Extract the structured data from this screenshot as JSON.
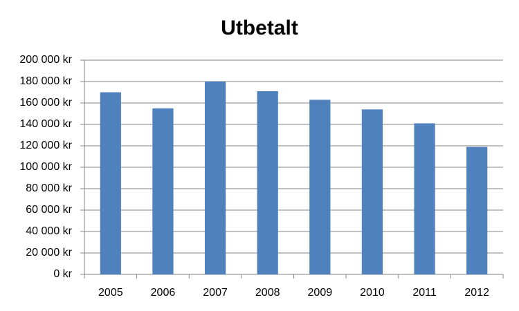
{
  "chart_data": {
    "type": "bar",
    "title": "Utbetalt",
    "categories": [
      "2005",
      "2006",
      "2007",
      "2008",
      "2009",
      "2010",
      "2011",
      "2012"
    ],
    "values": [
      170000,
      155000,
      180000,
      171000,
      163000,
      154000,
      141000,
      119000
    ],
    "color": "#4f81bd",
    "ylim": [
      0,
      200000
    ],
    "yticks": [
      {
        "value": 0,
        "label": "0 kr"
      },
      {
        "value": 20000,
        "label": "20 000 kr"
      },
      {
        "value": 40000,
        "label": "40 000 kr"
      },
      {
        "value": 60000,
        "label": "60 000 kr"
      },
      {
        "value": 80000,
        "label": "80 000 kr"
      },
      {
        "value": 100000,
        "label": "100 000 kr"
      },
      {
        "value": 120000,
        "label": "120 000 kr"
      },
      {
        "value": 140000,
        "label": "140 000 kr"
      },
      {
        "value": 160000,
        "label": "160 000 kr"
      },
      {
        "value": 180000,
        "label": "180 000 kr"
      },
      {
        "value": 200000,
        "label": "200 000 kr"
      }
    ],
    "grid": true
  }
}
